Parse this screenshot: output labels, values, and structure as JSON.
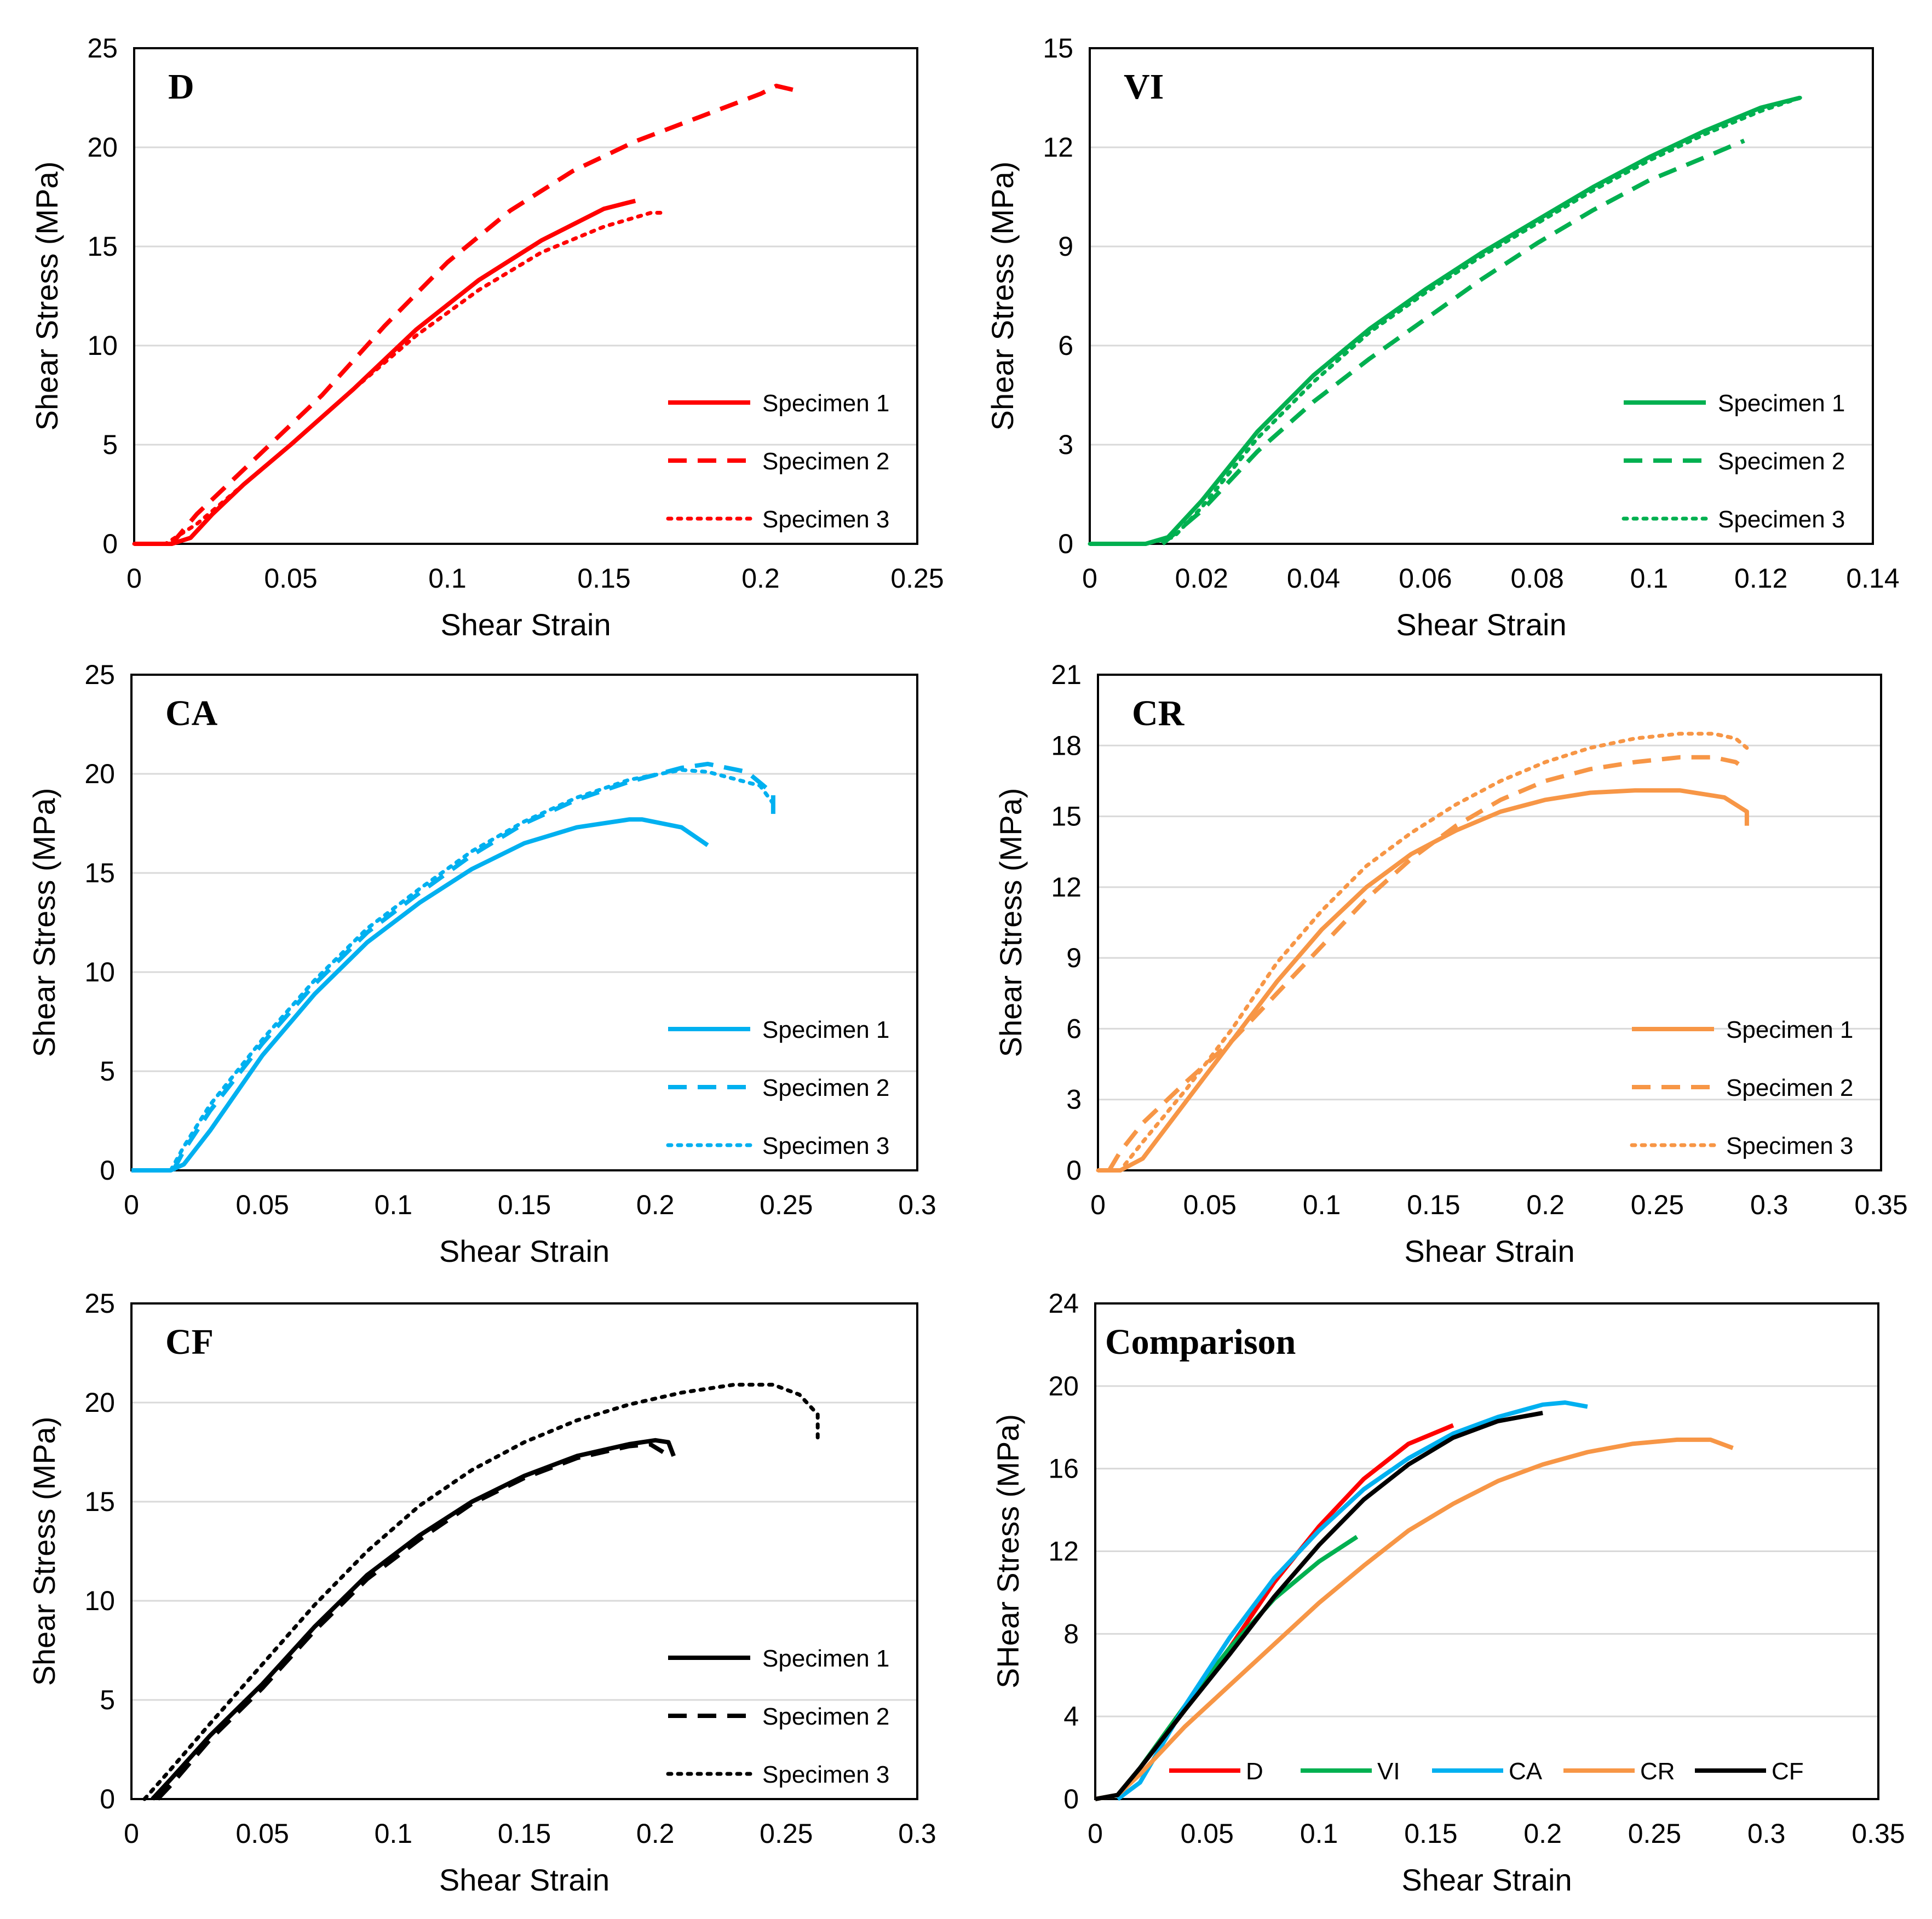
{
  "chart_data": [
    {
      "type": "line",
      "panel_label": "D",
      "xlabel": "Shear Strain",
      "ylabel": "Shear Stress (MPa)",
      "xlim": [
        0,
        0.25
      ],
      "ylim": [
        0,
        25
      ],
      "xticks": [
        "0",
        "0.05",
        "0.1",
        "0.15",
        "0.2",
        "0.25"
      ],
      "yticks": [
        "0",
        "5",
        "10",
        "15",
        "20",
        "25"
      ],
      "grid": true,
      "legend_position": "bottom-right",
      "color": "#ff0000",
      "series": [
        {
          "name": "Specimen 1",
          "style": "solid",
          "x": [
            0,
            0.012,
            0.018,
            0.025,
            0.035,
            0.05,
            0.07,
            0.09,
            0.11,
            0.13,
            0.15,
            0.16
          ],
          "y": [
            0,
            0,
            0.3,
            1.5,
            3,
            5,
            7.8,
            10.8,
            13.3,
            15.3,
            16.9,
            17.3
          ]
        },
        {
          "name": "Specimen 2",
          "style": "dashed",
          "x": [
            0.012,
            0.02,
            0.04,
            0.06,
            0.08,
            0.1,
            0.12,
            0.14,
            0.16,
            0.18,
            0.2,
            0.205,
            0.213
          ],
          "y": [
            0,
            1.5,
            4.5,
            7.5,
            11,
            14.2,
            16.8,
            18.8,
            20.3,
            21.5,
            22.7,
            23.1,
            22.8
          ]
        },
        {
          "name": "Specimen 3",
          "style": "dotted",
          "x": [
            0,
            0.01,
            0.02,
            0.035,
            0.05,
            0.07,
            0.09,
            0.11,
            0.13,
            0.15,
            0.165,
            0.17
          ],
          "y": [
            0,
            0,
            1,
            3,
            5,
            7.8,
            10.5,
            12.8,
            14.7,
            16,
            16.7,
            16.7
          ]
        }
      ]
    },
    {
      "type": "line",
      "panel_label": "VI",
      "xlabel": "Shear Strain",
      "ylabel": "Shear Stress (MPa)",
      "xlim": [
        0,
        0.14
      ],
      "ylim": [
        0,
        15
      ],
      "xticks": [
        "0",
        "0.02",
        "0.04",
        "0.06",
        "0.08",
        "0.1",
        "0.12",
        "0.14"
      ],
      "yticks": [
        "0",
        "3",
        "6",
        "9",
        "12",
        "15"
      ],
      "grid": true,
      "legend_position": "bottom-right",
      "color": "#00b050",
      "series": [
        {
          "name": "Specimen 1",
          "style": "solid",
          "x": [
            0,
            0.01,
            0.014,
            0.02,
            0.03,
            0.04,
            0.05,
            0.06,
            0.07,
            0.08,
            0.09,
            0.1,
            0.11,
            0.12,
            0.127
          ],
          "y": [
            0,
            0,
            0.2,
            1.3,
            3.4,
            5.1,
            6.5,
            7.7,
            8.8,
            9.8,
            10.8,
            11.7,
            12.5,
            13.2,
            13.5
          ]
        },
        {
          "name": "Specimen 2",
          "style": "dashed",
          "x": [
            0.013,
            0.02,
            0.03,
            0.04,
            0.05,
            0.06,
            0.07,
            0.08,
            0.09,
            0.1,
            0.11,
            0.117
          ],
          "y": [
            0,
            1,
            2.8,
            4.3,
            5.6,
            6.8,
            8,
            9.1,
            10.1,
            11,
            11.7,
            12.2
          ]
        },
        {
          "name": "Specimen 3",
          "style": "dotted",
          "x": [
            0,
            0.01,
            0.015,
            0.02,
            0.03,
            0.04,
            0.05,
            0.06,
            0.07,
            0.08,
            0.09,
            0.1,
            0.11,
            0.12,
            0.127
          ],
          "y": [
            0,
            0,
            0.2,
            1.1,
            3.2,
            4.9,
            6.4,
            7.6,
            8.7,
            9.7,
            10.7,
            11.6,
            12.4,
            13.1,
            13.5
          ]
        }
      ]
    },
    {
      "type": "line",
      "panel_label": "CA",
      "xlabel": "Shear Strain",
      "ylabel": "Shear Stress (MPa)",
      "xlim": [
        0,
        0.3
      ],
      "ylim": [
        0,
        25
      ],
      "xticks": [
        "0",
        "0.05",
        "0.1",
        "0.15",
        "0.2",
        "0.25",
        "0.3"
      ],
      "yticks": [
        "0",
        "5",
        "10",
        "15",
        "20",
        "25"
      ],
      "grid": true,
      "legend_position": "bottom-right",
      "color": "#00b0f0",
      "series": [
        {
          "name": "Specimen 1",
          "style": "solid",
          "x": [
            0,
            0.015,
            0.02,
            0.03,
            0.05,
            0.07,
            0.09,
            0.11,
            0.13,
            0.15,
            0.17,
            0.19,
            0.195,
            0.21,
            0.22
          ],
          "y": [
            0,
            0,
            0.3,
            2,
            5.8,
            8.9,
            11.5,
            13.5,
            15.2,
            16.5,
            17.3,
            17.7,
            17.7,
            17.3,
            16.4
          ]
        },
        {
          "name": "Specimen 2",
          "style": "dashed",
          "x": [
            0.016,
            0.02,
            0.03,
            0.05,
            0.07,
            0.09,
            0.11,
            0.13,
            0.15,
            0.17,
            0.19,
            0.21,
            0.22,
            0.235,
            0.245,
            0.245
          ],
          "y": [
            0,
            1,
            3,
            6.4,
            9.4,
            12,
            14,
            15.9,
            17.5,
            18.7,
            19.6,
            20.3,
            20.5,
            20.1,
            19,
            17.8
          ]
        },
        {
          "name": "Specimen 3",
          "style": "dotted",
          "x": [
            0.015,
            0.02,
            0.03,
            0.05,
            0.07,
            0.09,
            0.11,
            0.13,
            0.15,
            0.17,
            0.19,
            0.21,
            0.22,
            0.24,
            0.245
          ],
          "y": [
            0,
            1.2,
            3.3,
            6.6,
            9.6,
            12.2,
            14.2,
            16.1,
            17.6,
            18.8,
            19.7,
            20.2,
            20.1,
            19.4,
            18.5
          ]
        }
      ]
    },
    {
      "type": "line",
      "panel_label": "CR",
      "xlabel": "Shear Strain",
      "ylabel": "Shear Stress (MPa)",
      "xlim": [
        0,
        0.35
      ],
      "ylim": [
        0,
        21
      ],
      "xticks": [
        "0",
        "0.05",
        "0.1",
        "0.15",
        "0.2",
        "0.25",
        "0.3",
        "0.35"
      ],
      "yticks": [
        "0",
        "3",
        "6",
        "9",
        "12",
        "15",
        "18",
        "21"
      ],
      "grid": true,
      "legend_position": "bottom-right",
      "color": "#f79646",
      "series": [
        {
          "name": "Specimen 1",
          "style": "solid",
          "x": [
            0,
            0.01,
            0.02,
            0.04,
            0.06,
            0.08,
            0.1,
            0.12,
            0.14,
            0.16,
            0.18,
            0.2,
            0.22,
            0.24,
            0.26,
            0.28,
            0.29,
            0.29
          ],
          "y": [
            0,
            0,
            0.5,
            3,
            5.5,
            8,
            10.2,
            12,
            13.4,
            14.4,
            15.2,
            15.7,
            16,
            16.1,
            16.1,
            15.8,
            15.2,
            14.6
          ]
        },
        {
          "name": "Specimen 2",
          "style": "dashed",
          "x": [
            0.005,
            0.01,
            0.02,
            0.04,
            0.06,
            0.08,
            0.1,
            0.12,
            0.14,
            0.16,
            0.18,
            0.2,
            0.22,
            0.24,
            0.26,
            0.275,
            0.285,
            0.288
          ],
          "y": [
            0,
            0.8,
            2,
            3.8,
            5.5,
            7.5,
            9.5,
            11.5,
            13.2,
            14.6,
            15.7,
            16.5,
            17,
            17.3,
            17.5,
            17.5,
            17.3,
            17.1
          ]
        },
        {
          "name": "Specimen 3",
          "style": "dotted",
          "x": [
            0,
            0.01,
            0.02,
            0.04,
            0.06,
            0.08,
            0.1,
            0.12,
            0.14,
            0.16,
            0.18,
            0.2,
            0.22,
            0.24,
            0.26,
            0.275,
            0.285,
            0.29
          ],
          "y": [
            0,
            0,
            1.2,
            3.5,
            6,
            8.8,
            11,
            12.9,
            14.3,
            15.5,
            16.5,
            17.3,
            17.9,
            18.3,
            18.5,
            18.5,
            18.3,
            17.9
          ]
        }
      ]
    },
    {
      "type": "line",
      "panel_label": "CF",
      "xlabel": "Shear Strain",
      "ylabel": "Shear Stress (MPa)",
      "xlim": [
        0,
        0.3
      ],
      "ylim": [
        0,
        25
      ],
      "xticks": [
        "0",
        "0.05",
        "0.1",
        "0.15",
        "0.2",
        "0.25",
        "0.3"
      ],
      "yticks": [
        "0",
        "5",
        "10",
        "15",
        "20",
        "25"
      ],
      "grid": true,
      "legend_position": "bottom-right",
      "color": "#000000",
      "series": [
        {
          "name": "Specimen 1",
          "style": "solid",
          "x": [
            0.008,
            0.015,
            0.03,
            0.05,
            0.07,
            0.09,
            0.11,
            0.13,
            0.15,
            0.17,
            0.19,
            0.2,
            0.205,
            0.207
          ],
          "y": [
            0,
            1,
            3.2,
            5.8,
            8.7,
            11.3,
            13.3,
            15,
            16.3,
            17.3,
            17.9,
            18.1,
            18,
            17.3
          ]
        },
        {
          "name": "Specimen 2",
          "style": "dashed",
          "x": [
            0.01,
            0.015,
            0.03,
            0.05,
            0.07,
            0.09,
            0.11,
            0.13,
            0.15,
            0.17,
            0.19,
            0.198,
            0.203
          ],
          "y": [
            0,
            0.7,
            3,
            5.6,
            8.5,
            11.1,
            13.1,
            14.9,
            16.2,
            17.2,
            17.8,
            17.9,
            17.5
          ]
        },
        {
          "name": "Specimen 3",
          "style": "dotted",
          "x": [
            0.005,
            0.015,
            0.03,
            0.05,
            0.07,
            0.09,
            0.11,
            0.13,
            0.15,
            0.17,
            0.19,
            0.21,
            0.23,
            0.245,
            0.255,
            0.262,
            0.262
          ],
          "y": [
            0,
            1.5,
            3.8,
            6.8,
            9.8,
            12.5,
            14.8,
            16.6,
            18,
            19.1,
            19.9,
            20.5,
            20.9,
            20.9,
            20.4,
            19.4,
            18.2
          ]
        }
      ]
    },
    {
      "type": "line",
      "panel_label": "Comparison",
      "xlabel": "Shear Strain",
      "ylabel": "SHear Stress (MPa)",
      "xlim": [
        0,
        0.35
      ],
      "ylim": [
        0,
        24
      ],
      "xticks": [
        "0",
        "0.05",
        "0.1",
        "0.15",
        "0.2",
        "0.25",
        "0.3",
        "0.35"
      ],
      "yticks": [
        "0",
        "4",
        "8",
        "12",
        "16",
        "20",
        "24"
      ],
      "grid": true,
      "legend_position": "bottom",
      "series": [
        {
          "name": "D",
          "color": "#ff0000",
          "style": "solid",
          "x": [
            0,
            0.01,
            0.02,
            0.04,
            0.06,
            0.08,
            0.1,
            0.12,
            0.14,
            0.16
          ],
          "y": [
            0,
            0.2,
            1.5,
            4.3,
            7.3,
            10.5,
            13.2,
            15.5,
            17.2,
            18.1
          ]
        },
        {
          "name": "VI",
          "color": "#00b050",
          "style": "solid",
          "x": [
            0,
            0.01,
            0.02,
            0.04,
            0.06,
            0.08,
            0.1,
            0.117
          ],
          "y": [
            0,
            0.2,
            1.5,
            4.5,
            7.3,
            9.7,
            11.5,
            12.7
          ]
        },
        {
          "name": "CA",
          "color": "#00b0f0",
          "style": "solid",
          "x": [
            0.01,
            0.02,
            0.04,
            0.06,
            0.08,
            0.1,
            0.12,
            0.14,
            0.16,
            0.18,
            0.2,
            0.21,
            0.22
          ],
          "y": [
            0,
            0.8,
            4.5,
            7.8,
            10.7,
            13,
            15,
            16.5,
            17.7,
            18.5,
            19.1,
            19.2,
            19
          ]
        },
        {
          "name": "CR",
          "color": "#f79646",
          "style": "solid",
          "x": [
            0,
            0.01,
            0.02,
            0.04,
            0.06,
            0.08,
            0.1,
            0.12,
            0.14,
            0.16,
            0.18,
            0.2,
            0.22,
            0.24,
            0.26,
            0.275,
            0.285
          ],
          "y": [
            0,
            0.2,
            1.2,
            3.5,
            5.5,
            7.5,
            9.5,
            11.3,
            13,
            14.3,
            15.4,
            16.2,
            16.8,
            17.2,
            17.4,
            17.4,
            17
          ]
        },
        {
          "name": "CF",
          "color": "#000000",
          "style": "solid",
          "x": [
            0,
            0.01,
            0.02,
            0.04,
            0.06,
            0.08,
            0.1,
            0.12,
            0.14,
            0.16,
            0.18,
            0.2
          ],
          "y": [
            0,
            0.2,
            1.5,
            4.3,
            7,
            9.8,
            12.3,
            14.5,
            16.2,
            17.5,
            18.3,
            18.7
          ]
        }
      ]
    }
  ]
}
